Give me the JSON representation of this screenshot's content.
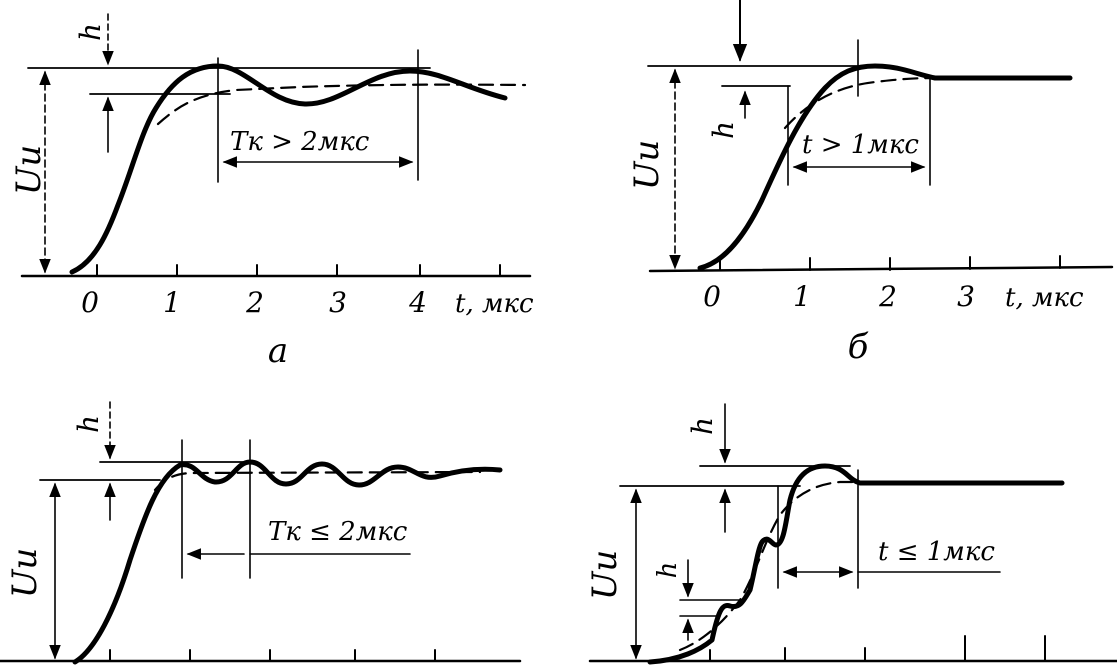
{
  "panels": [
    {
      "id": "a",
      "caption": "а",
      "amplitude_label": "Uи",
      "overshoot_label": "h",
      "period_label": "Tк > 2мкс",
      "axis_label": "t, мкс",
      "ticks": [
        "0",
        "1",
        "2",
        "3",
        "4"
      ]
    },
    {
      "id": "b",
      "caption": "б",
      "amplitude_label": "Uи",
      "overshoot_label": "h",
      "period_label": "t > 1мкс",
      "axis_label": "t, мкс",
      "ticks": [
        "0",
        "1",
        "2",
        "3"
      ]
    },
    {
      "id": "c",
      "amplitude_label": "Uи",
      "overshoot_label": "h",
      "period_label": "Tк ≤ 2мкс"
    },
    {
      "id": "d",
      "amplitude_label": "Uи",
      "overshoot_label": "h",
      "step_label": "h",
      "period_label": "t ≤ 1мкс"
    }
  ]
}
